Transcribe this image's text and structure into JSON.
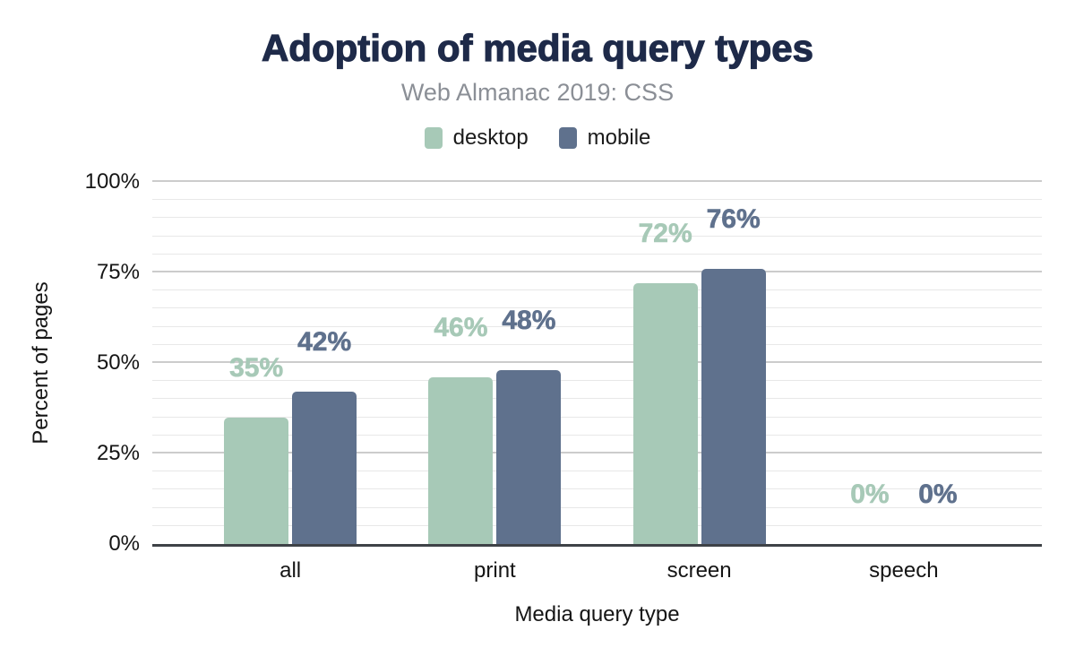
{
  "chart_data": {
    "type": "bar",
    "title": "Adoption of media query types",
    "subtitle": "Web Almanac 2019: CSS",
    "xlabel": "Media query type",
    "ylabel": "Percent of pages",
    "categories": [
      "all",
      "print",
      "screen",
      "speech"
    ],
    "series": [
      {
        "name": "desktop",
        "color": "#a7c9b7",
        "values": [
          35,
          46,
          72,
          0
        ]
      },
      {
        "name": "mobile",
        "color": "#5f718d",
        "values": [
          42,
          48,
          76,
          0
        ]
      }
    ],
    "ylim": [
      0,
      100
    ],
    "y_major_ticks": [
      0,
      25,
      50,
      75,
      100
    ],
    "y_minor_step": 5,
    "tick_suffix": "%",
    "grid": "horizontal-minor-and-major",
    "legend_position": "top",
    "data_labels": true
  },
  "palette": {
    "background": "#ffffff",
    "title_color": "#1e2a49",
    "subtitle_color": "#8b8f96",
    "axis_text_color": "#151515",
    "minor_grid_color": "#e8e8e8",
    "major_grid_color": "#cccccc",
    "axis_line_color": "#3e4247"
  }
}
